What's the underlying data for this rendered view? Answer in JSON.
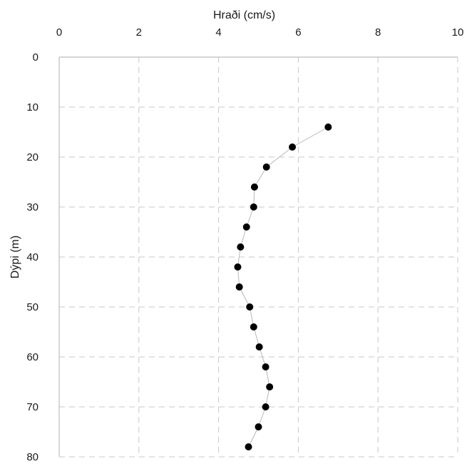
{
  "chart_data": {
    "type": "scatter",
    "title": "",
    "xlabel": "Hraði (cm/s)",
    "ylabel": "Dýpi (m)",
    "xlim": [
      0,
      10
    ],
    "ylim": [
      0,
      80
    ],
    "x_ticks": [
      0,
      2,
      4,
      6,
      8,
      10
    ],
    "y_ticks": [
      0,
      10,
      20,
      30,
      40,
      50,
      60,
      70,
      80
    ],
    "x_axis_position": "top",
    "y_axis_inverted": true,
    "grid": true,
    "legend": "none",
    "colors": {
      "points": "#000000",
      "line": "#b8b8b8",
      "grid": "#c8c8c8"
    },
    "series": [
      {
        "points": [
          {
            "x": 6.75,
            "y": 14
          },
          {
            "x": 5.85,
            "y": 18
          },
          {
            "x": 5.2,
            "y": 22
          },
          {
            "x": 4.9,
            "y": 26
          },
          {
            "x": 4.88,
            "y": 30
          },
          {
            "x": 4.7,
            "y": 34
          },
          {
            "x": 4.55,
            "y": 38
          },
          {
            "x": 4.48,
            "y": 42
          },
          {
            "x": 4.52,
            "y": 46
          },
          {
            "x": 4.78,
            "y": 50
          },
          {
            "x": 4.88,
            "y": 54
          },
          {
            "x": 5.02,
            "y": 58
          },
          {
            "x": 5.18,
            "y": 62
          },
          {
            "x": 5.28,
            "y": 66
          },
          {
            "x": 5.18,
            "y": 70
          },
          {
            "x": 5.0,
            "y": 74
          },
          {
            "x": 4.75,
            "y": 78
          }
        ]
      }
    ]
  }
}
